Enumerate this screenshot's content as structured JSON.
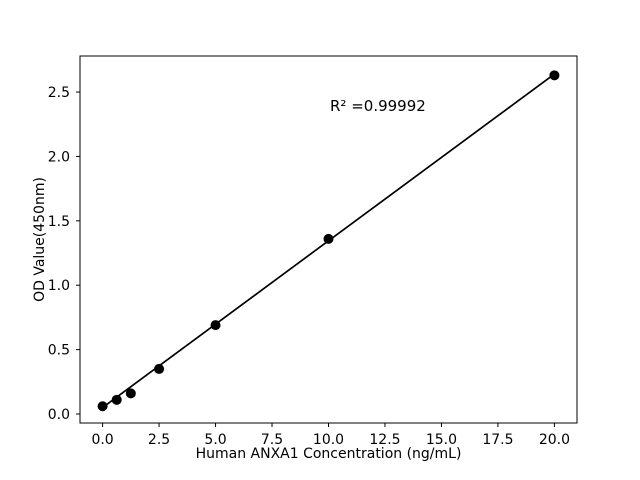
{
  "figure": {
    "background": "#ffffff"
  },
  "chart_data": {
    "type": "scatter",
    "xlabel": "Human ANXA1 Concentration (ng/mL)",
    "ylabel": "OD Value(450nm)",
    "annotation": {
      "text": "R² =0.99992",
      "x": 10.1,
      "y": 2.36
    },
    "x": [
      0,
      0.625,
      1.25,
      2.5,
      5,
      10,
      20
    ],
    "y": [
      0.06,
      0.11,
      0.16,
      0.35,
      0.69,
      1.36,
      2.63
    ],
    "fit_line": {
      "x1": 0,
      "y1": 0.05,
      "x2": 20,
      "y2": 2.64,
      "r_squared": 0.99992
    },
    "xticks": {
      "values": [
        0,
        2.5,
        5,
        7.5,
        10,
        12.5,
        15,
        17.5,
        20
      ],
      "labels": [
        "0.0",
        "2.5",
        "5.0",
        "7.5",
        "10.0",
        "12.5",
        "15.0",
        "17.5",
        "20.0"
      ]
    },
    "yticks": {
      "values": [
        0,
        0.5,
        1,
        1.5,
        2,
        2.5
      ],
      "labels": [
        "0.0",
        "0.5",
        "1.0",
        "1.5",
        "2.0",
        "2.5"
      ]
    },
    "xlim": [
      -1.0,
      21.0
    ],
    "ylim": [
      -0.07,
      2.78
    ],
    "grid": false,
    "marker_color": "#000000",
    "line_color": "#000000",
    "axis_color": "#000000"
  }
}
